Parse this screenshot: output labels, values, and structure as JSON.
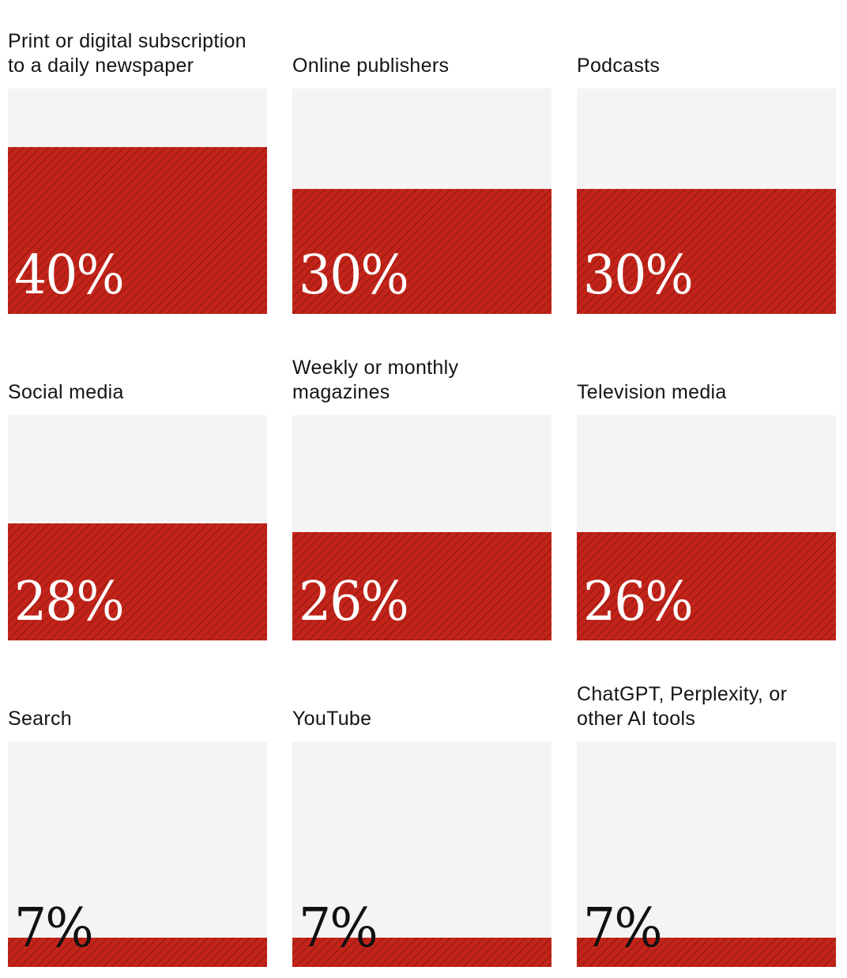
{
  "chart_data": {
    "type": "bar",
    "categories": [
      "Print or digital subscription to a daily newspaper",
      "Online publishers",
      "Podcasts",
      "Social media",
      "Weekly or monthly magazines",
      "Television media",
      "Search",
      "YouTube",
      "ChatGPT, Perplexity, or other AI tools"
    ],
    "values": [
      40,
      30,
      30,
      28,
      26,
      26,
      7,
      7,
      7
    ],
    "value_labels": [
      "40%",
      "30%",
      "30%",
      "28%",
      "26%",
      "26%",
      "7%",
      "7%",
      "7%"
    ],
    "ylim": [
      0,
      54
    ],
    "layout": "3x3 grid of fill boxes",
    "colors": {
      "fill": "#c3241a",
      "background": "#f4f4f4"
    }
  }
}
